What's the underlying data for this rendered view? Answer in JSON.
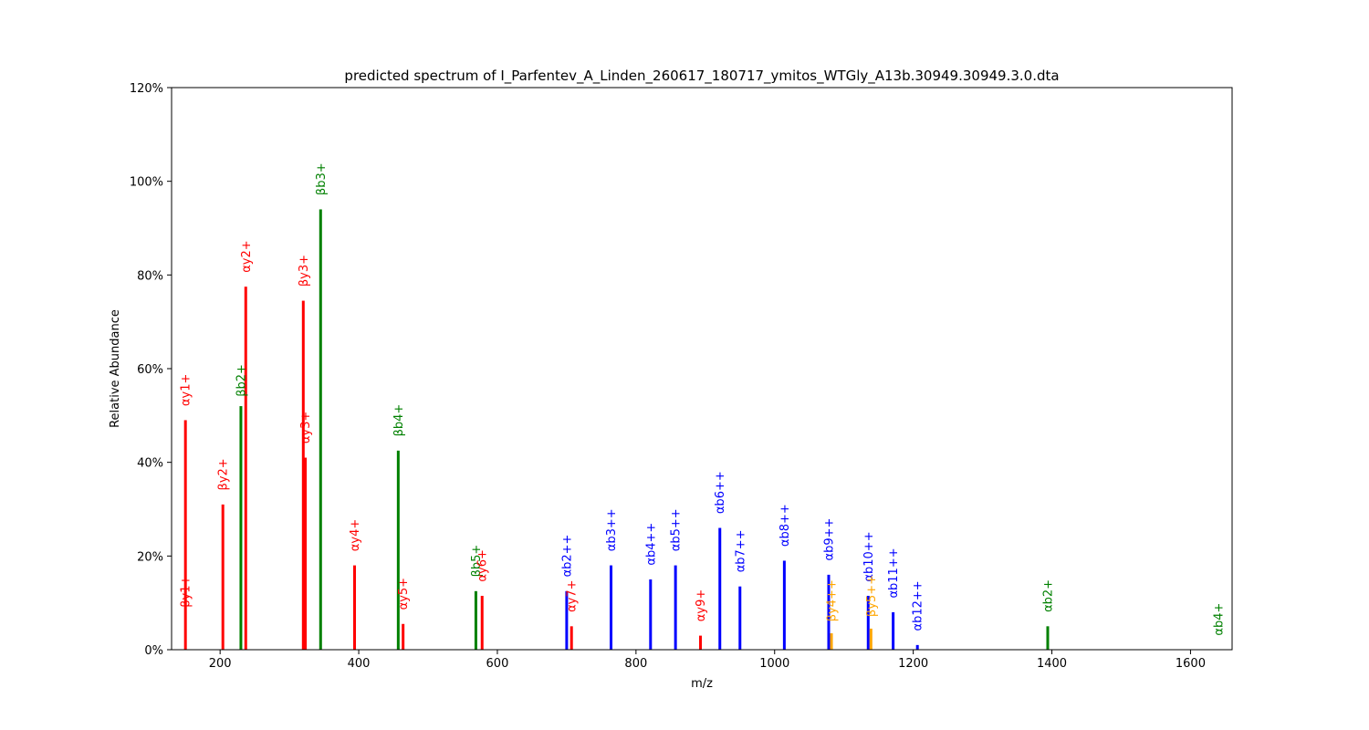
{
  "chart_data": {
    "type": "bar",
    "title": "predicted spectrum of I_Parfentev_A_Linden_260617_180717_ymitos_WTGly_A13b.30949.30949.3.0.dta",
    "xlabel": "m/z",
    "ylabel": "Relative Abundance",
    "xlim": [
      130,
      1660
    ],
    "ylim": [
      0,
      120
    ],
    "xticks": [
      200,
      400,
      600,
      800,
      1000,
      1200,
      1400,
      1600
    ],
    "yticks": [
      0,
      20,
      40,
      60,
      80,
      100,
      120
    ],
    "ytick_labels": [
      "0%",
      "20%",
      "40%",
      "60%",
      "80%",
      "100%",
      "120%"
    ],
    "colors": {
      "red": "#ff0000",
      "green": "#008000",
      "blue": "#0000ff",
      "orange": "#ffa500"
    },
    "peaks": [
      {
        "mz": 150,
        "intensity": 49,
        "color": "red",
        "label": "αy1+",
        "label_y": 52
      },
      {
        "mz": 150,
        "intensity": 0,
        "color": "red",
        "label": "βy1+",
        "label_y": 9
      },
      {
        "mz": 204,
        "intensity": 31,
        "color": "red",
        "label": "βy2+",
        "label_y": 34
      },
      {
        "mz": 230,
        "intensity": 52,
        "color": "green",
        "label": "βb2+",
        "label_y": 54
      },
      {
        "mz": 237,
        "intensity": 77.5,
        "color": "red",
        "label": "αy2+",
        "label_y": 80.5
      },
      {
        "mz": 320,
        "intensity": 74.5,
        "color": "red",
        "label": "βy3+",
        "label_y": 77.5
      },
      {
        "mz": 323,
        "intensity": 41,
        "color": "red",
        "label": "αy3+",
        "label_y": 44
      },
      {
        "mz": 345,
        "intensity": 94,
        "color": "green",
        "label": "βb3+",
        "label_y": 97
      },
      {
        "mz": 394,
        "intensity": 18,
        "color": "red",
        "label": "αy4+",
        "label_y": 21
      },
      {
        "mz": 457,
        "intensity": 42.5,
        "color": "green",
        "label": "βb4+",
        "label_y": 45.5
      },
      {
        "mz": 464,
        "intensity": 5.5,
        "color": "red",
        "label": "αy5+",
        "label_y": 8.5
      },
      {
        "mz": 569,
        "intensity": 12.5,
        "color": "green",
        "label": "βb5+",
        "label_y": 15.5
      },
      {
        "mz": 578,
        "intensity": 11.5,
        "color": "red",
        "label": "αy6+",
        "label_y": 14.5
      },
      {
        "mz": 700,
        "intensity": 12.5,
        "color": "blue",
        "label": "αb2++",
        "label_y": 15.5
      },
      {
        "mz": 707,
        "intensity": 5,
        "color": "red",
        "label": "αy7+",
        "label_y": 8
      },
      {
        "mz": 764,
        "intensity": 18,
        "color": "blue",
        "label": "αb3++",
        "label_y": 21
      },
      {
        "mz": 821,
        "intensity": 15,
        "color": "blue",
        "label": "αb4++",
        "label_y": 18
      },
      {
        "mz": 857,
        "intensity": 18,
        "color": "blue",
        "label": "αb5++",
        "label_y": 21
      },
      {
        "mz": 893,
        "intensity": 3,
        "color": "red",
        "label": "αy9+",
        "label_y": 6
      },
      {
        "mz": 921,
        "intensity": 26,
        "color": "blue",
        "label": "αb6++",
        "label_y": 29
      },
      {
        "mz": 950,
        "intensity": 13.5,
        "color": "blue",
        "label": "αb7++",
        "label_y": 16.5
      },
      {
        "mz": 1014,
        "intensity": 19,
        "color": "blue",
        "label": "αb8++",
        "label_y": 22
      },
      {
        "mz": 1078,
        "intensity": 16,
        "color": "blue",
        "label": "αb9++",
        "label_y": 19
      },
      {
        "mz": 1082,
        "intensity": 3.5,
        "color": "orange",
        "label": "βy4++",
        "label_y": 6
      },
      {
        "mz": 1135,
        "intensity": 11.5,
        "color": "blue",
        "label": "αb10++",
        "label_y": 14.5
      },
      {
        "mz": 1139,
        "intensity": 4.5,
        "color": "orange",
        "label": "βy5++",
        "label_y": 7
      },
      {
        "mz": 1171,
        "intensity": 8,
        "color": "blue",
        "label": "αb11++",
        "label_y": 11
      },
      {
        "mz": 1206,
        "intensity": 1,
        "color": "blue",
        "label": "αb12++",
        "label_y": 4
      },
      {
        "mz": 1394,
        "intensity": 5,
        "color": "green",
        "label": "αb2+",
        "label_y": 8
      },
      {
        "mz": 1640,
        "intensity": 0,
        "color": "green",
        "label": "αb4+",
        "label_y": 3
      }
    ]
  }
}
